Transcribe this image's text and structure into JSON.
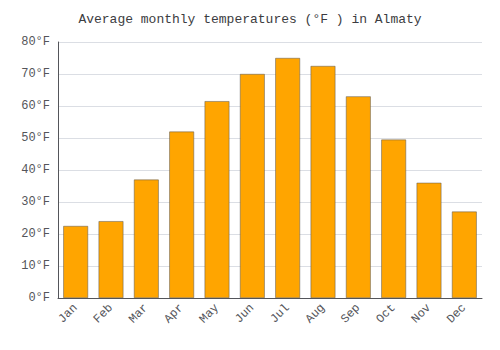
{
  "chart_data": {
    "type": "bar",
    "title": "Average monthly temperatures (°F ) in Almaty",
    "categories": [
      "Jan",
      "Feb",
      "Mar",
      "Apr",
      "May",
      "Jun",
      "Jul",
      "Aug",
      "Sep",
      "Oct",
      "Nov",
      "Dec"
    ],
    "values": [
      22.5,
      24.0,
      37.0,
      52.0,
      61.5,
      70.0,
      75.0,
      72.5,
      63.0,
      49.5,
      36.0,
      27.0
    ],
    "color": "#FFA500",
    "ylim": [
      0,
      80
    ],
    "yticks": [
      {
        "value": 0,
        "label": "0°F"
      },
      {
        "value": 10,
        "label": "10°F"
      },
      {
        "value": 20,
        "label": "20°F"
      },
      {
        "value": 30,
        "label": "30°F"
      },
      {
        "value": 40,
        "label": "40°F"
      },
      {
        "value": 50,
        "label": "50°F"
      },
      {
        "value": 60,
        "label": "60°F"
      },
      {
        "value": 70,
        "label": "70°F"
      },
      {
        "value": 80,
        "label": "80°F"
      }
    ],
    "grid": true
  }
}
